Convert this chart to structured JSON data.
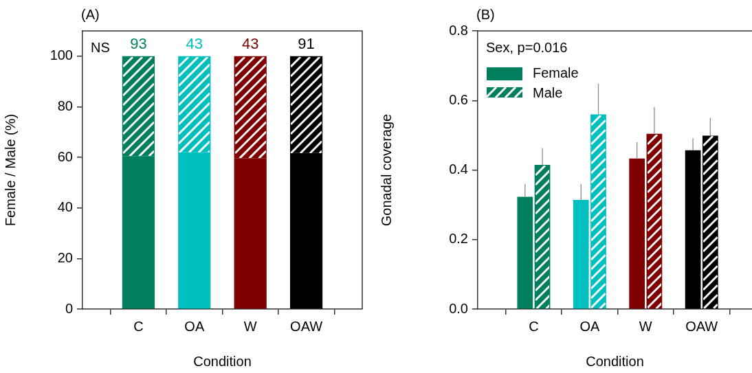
{
  "chart_data": [
    {
      "type": "bar",
      "title": "(A)",
      "xlabel": "Condition",
      "ylabel": "Female / Male (%)",
      "stacked": true,
      "categories": [
        "C",
        "OA",
        "W",
        "OAW"
      ],
      "series": [
        {
          "colors": [
            "#007f5f",
            "#00bfbf",
            "#7f0000",
            "#000000"
          ],
          "values": [
            60.5,
            62.0,
            59.7,
            61.7
          ]
        },
        {
          "colors": [
            "#007f5f",
            "#00bfbf",
            "#7f0000",
            "#000000"
          ],
          "values": [
            39.5,
            38.0,
            40.3,
            38.3
          ]
        }
      ],
      "ylim": [
        0,
        110
      ],
      "yticks": [
        0,
        20,
        40,
        60,
        80,
        100
      ],
      "grid": false,
      "annotations": [
        "NS",
        {
          "text": "93",
          "x": "C",
          "y": 100
        },
        {
          "text": "43",
          "x": "OA",
          "y": 100
        },
        {
          "text": "43",
          "x": "W",
          "y": 100
        },
        {
          "text": "91",
          "x": "OAW",
          "y": 100
        }
      ]
    },
    {
      "type": "bar",
      "title": "(B)",
      "xlabel": "Condition",
      "ylabel": "Gonadal coverage",
      "categories": [
        "C",
        "OA",
        "W",
        "OAW"
      ],
      "series": [
        {
          "name": "Female",
          "color": "#007f5f",
          "colors": [
            "#007f5f",
            "#00bfbf",
            "#7f0000",
            "#000000"
          ],
          "values": [
            0.323,
            0.314,
            0.433,
            0.457
          ],
          "errors": [
            [
              0.323,
              0.36
            ],
            [
              0.314,
              0.36
            ],
            [
              0.433,
              0.48
            ],
            [
              0.457,
              0.492
            ]
          ]
        },
        {
          "name": "Male",
          "color": "#007f5f",
          "colors": [
            "#007f5f",
            "#00bfbf",
            "#7f0000",
            "#000000"
          ],
          "values": [
            0.415,
            0.56,
            0.504,
            0.499
          ],
          "errors": [
            [
              0.415,
              0.463
            ],
            [
              0.56,
              0.648
            ],
            [
              0.504,
              0.581
            ],
            [
              0.499,
              0.55
            ]
          ]
        }
      ],
      "ylim": [
        0,
        0.8
      ],
      "yticks": [
        {
          "value": 0,
          "label": "0.0"
        },
        0.2,
        0.4,
        0.6,
        0.8
      ],
      "grid": false,
      "legend": "top left",
      "annotations": [
        "Sex, p=0.016"
      ]
    }
  ]
}
